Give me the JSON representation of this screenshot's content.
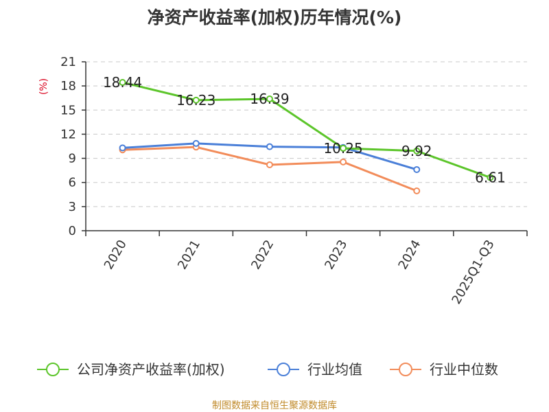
{
  "chart_data": {
    "type": "line",
    "title": "净资产收益率(加权)历年情况(%)",
    "ylabel": "(%)",
    "xlabel": "",
    "ylim": [
      0,
      21
    ],
    "yticks": [
      0,
      3,
      6,
      9,
      12,
      15,
      18,
      21
    ],
    "categories": [
      "2020",
      "2021",
      "2022",
      "2023",
      "2024",
      "2025Q1-Q3"
    ],
    "grid": true,
    "legend_position": "bottom",
    "series": [
      {
        "name": "公司净资产收益率(加权)",
        "color": "#5cc52a",
        "values": [
          18.44,
          16.23,
          16.39,
          10.25,
          9.92,
          6.61
        ],
        "labels": [
          "18.44",
          "16.23",
          "16.39",
          "10.25",
          "9.92",
          "6.61"
        ]
      },
      {
        "name": "行业均值",
        "color": "#4a7fd8",
        "values": [
          10.3,
          10.85,
          10.45,
          10.35,
          7.6,
          null
        ]
      },
      {
        "name": "行业中位数",
        "color": "#f28c5a",
        "values": [
          10.05,
          10.4,
          8.2,
          8.55,
          4.95,
          null
        ]
      }
    ]
  },
  "source": "制图数据来自恒生聚源数据库"
}
